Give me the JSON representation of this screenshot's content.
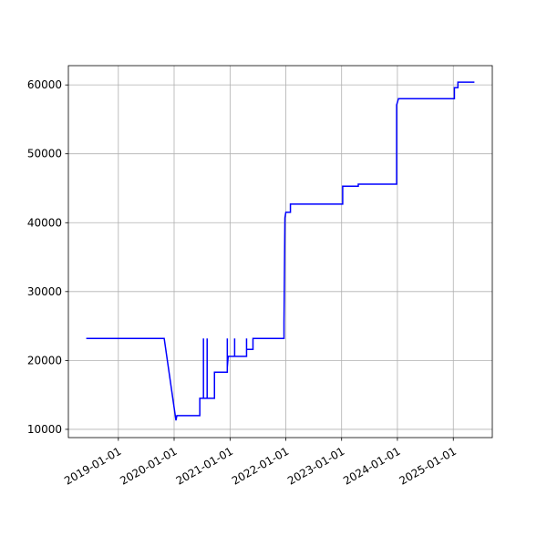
{
  "chart_data": {
    "type": "line",
    "x": [
      "2018-06-05",
      "2019-10-28",
      "2020-01-13",
      "2020-01-19",
      "2020-06-17",
      "2020-06-17",
      "2020-07-11",
      "2020-07-11",
      "2020-07-11",
      "2020-08-04",
      "2020-08-04",
      "2020-08-04",
      "2020-09-21",
      "2020-09-21",
      "2020-12-14",
      "2020-12-14",
      "2020-12-14",
      "2020-12-20",
      "2021-01-31",
      "2021-01-31",
      "2021-01-31",
      "2021-04-19",
      "2021-04-19",
      "2021-04-19",
      "2021-05-31",
      "2021-05-31",
      "2021-12-20",
      "2021-12-20",
      "2021-12-26",
      "2022-01-01",
      "2022-01-31",
      "2022-01-31",
      "2023-01-08",
      "2023-01-08",
      "2023-04-20",
      "2023-04-20",
      "2023-12-27",
      "2023-12-27",
      "2024-01-08",
      "2025-01-08",
      "2025-01-08",
      "2025-01-31",
      "2025-01-31",
      "2025-05-19"
    ],
    "series": [
      {
        "color": "#0000ff",
        "values": [
          23200,
          23200,
          11300,
          12000,
          12000,
          14500,
          14500,
          23200,
          14500,
          14500,
          23200,
          14500,
          14500,
          18300,
          18300,
          23200,
          19000,
          20600,
          20600,
          23200,
          20600,
          20600,
          23200,
          21600,
          21600,
          23200,
          23200,
          25500,
          40700,
          41500,
          41500,
          42700,
          42700,
          45300,
          45300,
          45600,
          45600,
          57100,
          58000,
          58000,
          59600,
          59600,
          60400,
          60400
        ]
      }
    ],
    "xlim": [
      "2018-02-08",
      "2025-09-13"
    ],
    "xticks": [
      "2019-01-01",
      "2020-01-01",
      "2021-01-01",
      "2022-01-01",
      "2023-01-01",
      "2024-01-01",
      "2025-01-01"
    ],
    "ylim": [
      8800,
      62800
    ],
    "yticks": [
      10000,
      20000,
      30000,
      40000,
      50000,
      60000
    ],
    "grid": true
  }
}
